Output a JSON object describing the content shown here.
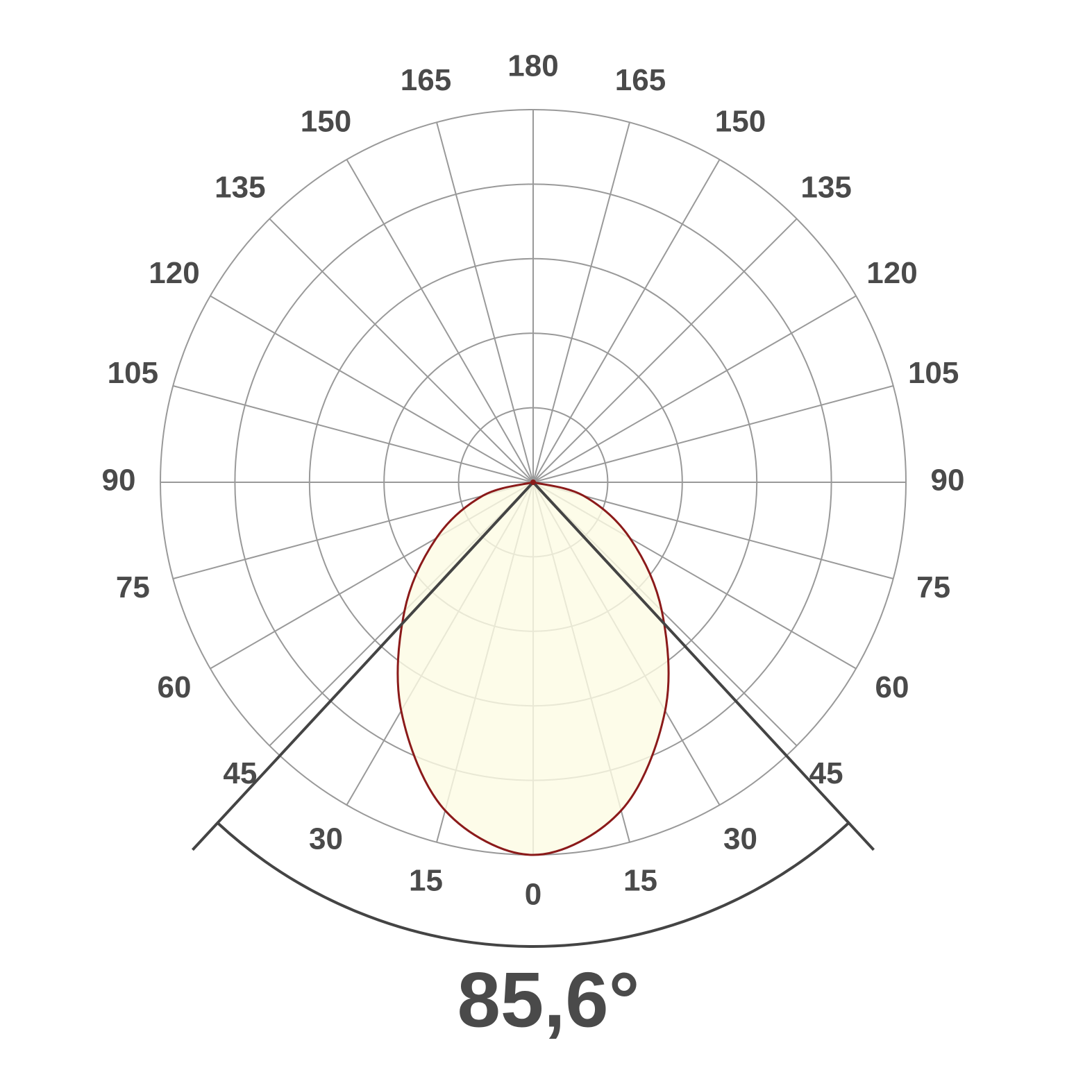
{
  "chart_data": {
    "type": "polar",
    "angle_ticks": [
      0,
      15,
      30,
      45,
      60,
      75,
      90,
      105,
      120,
      135,
      150,
      165,
      180
    ],
    "rlim": [
      0,
      5
    ],
    "rticks": [
      1,
      2,
      3,
      4,
      5
    ],
    "grid": true,
    "x": [
      -90,
      -75,
      -60,
      -45,
      -30,
      -15,
      0,
      15,
      30,
      45,
      60,
      75,
      90
    ],
    "series": [
      {
        "color": "#8b1a1a",
        "fill": "#fdfbe3",
        "values": [
          0,
          0.7,
          1.5,
          2.44,
          3.54,
          4.56,
          5,
          4.56,
          3.54,
          2.44,
          1.5,
          0.7,
          0
        ]
      }
    ],
    "beam_angle": 85.6,
    "beam_angle_label": "85,6°"
  }
}
